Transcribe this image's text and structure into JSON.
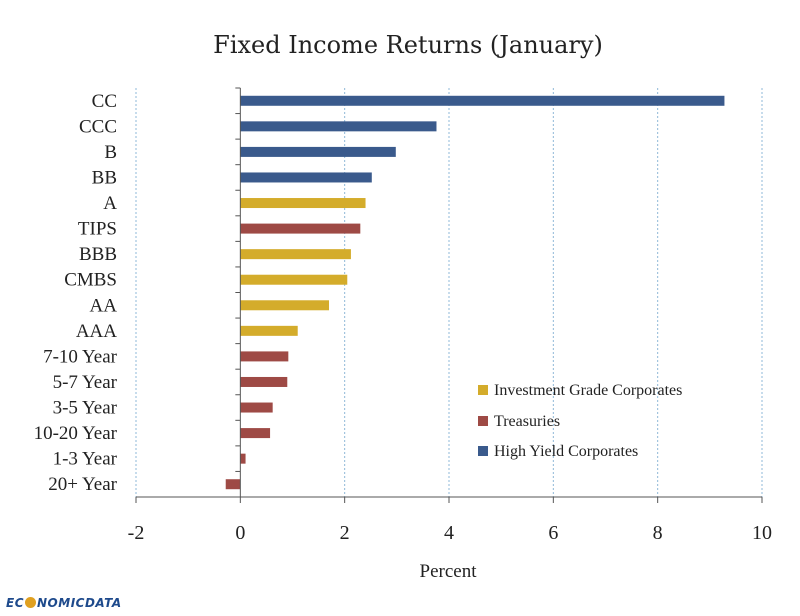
{
  "chart_data": {
    "type": "bar",
    "orientation": "horizontal",
    "title": "Fixed Income Returns (January)",
    "xlabel": "Percent",
    "ylabel": "",
    "xlim": [
      -2,
      10
    ],
    "xticks": [
      -2,
      0,
      2,
      4,
      6,
      8,
      10
    ],
    "grid": true,
    "legend_position": "bottom-right",
    "categories": [
      "CC",
      "CCC",
      "B",
      "BB",
      "A",
      "TIPS",
      "BBB",
      "CMBS",
      "AA",
      "AAA",
      "7-10 Year",
      "5-7 Year",
      "3-5 Year",
      "10-20 Year",
      "1-3 Year",
      "20+ Year"
    ],
    "values": [
      9.28,
      3.76,
      2.98,
      2.52,
      2.4,
      2.3,
      2.12,
      2.05,
      1.7,
      1.1,
      0.92,
      0.9,
      0.62,
      0.57,
      0.1,
      -0.28
    ],
    "groups": [
      "High Yield Corporates",
      "High Yield Corporates",
      "High Yield Corporates",
      "High Yield Corporates",
      "Investment Grade Corporates",
      "Treasuries",
      "Investment Grade Corporates",
      "Investment Grade Corporates",
      "Investment Grade Corporates",
      "Investment Grade Corporates",
      "Treasuries",
      "Treasuries",
      "Treasuries",
      "Treasuries",
      "Treasuries",
      "Treasuries"
    ],
    "series": [
      {
        "name": "Investment Grade Corporates",
        "color": "#d4ac2b"
      },
      {
        "name": "Treasuries",
        "color": "#9e4a45"
      },
      {
        "name": "High Yield Corporates",
        "color": "#3a5a8c"
      }
    ]
  },
  "brand": {
    "pre": "EC",
    "post": "NOMICDATA"
  }
}
